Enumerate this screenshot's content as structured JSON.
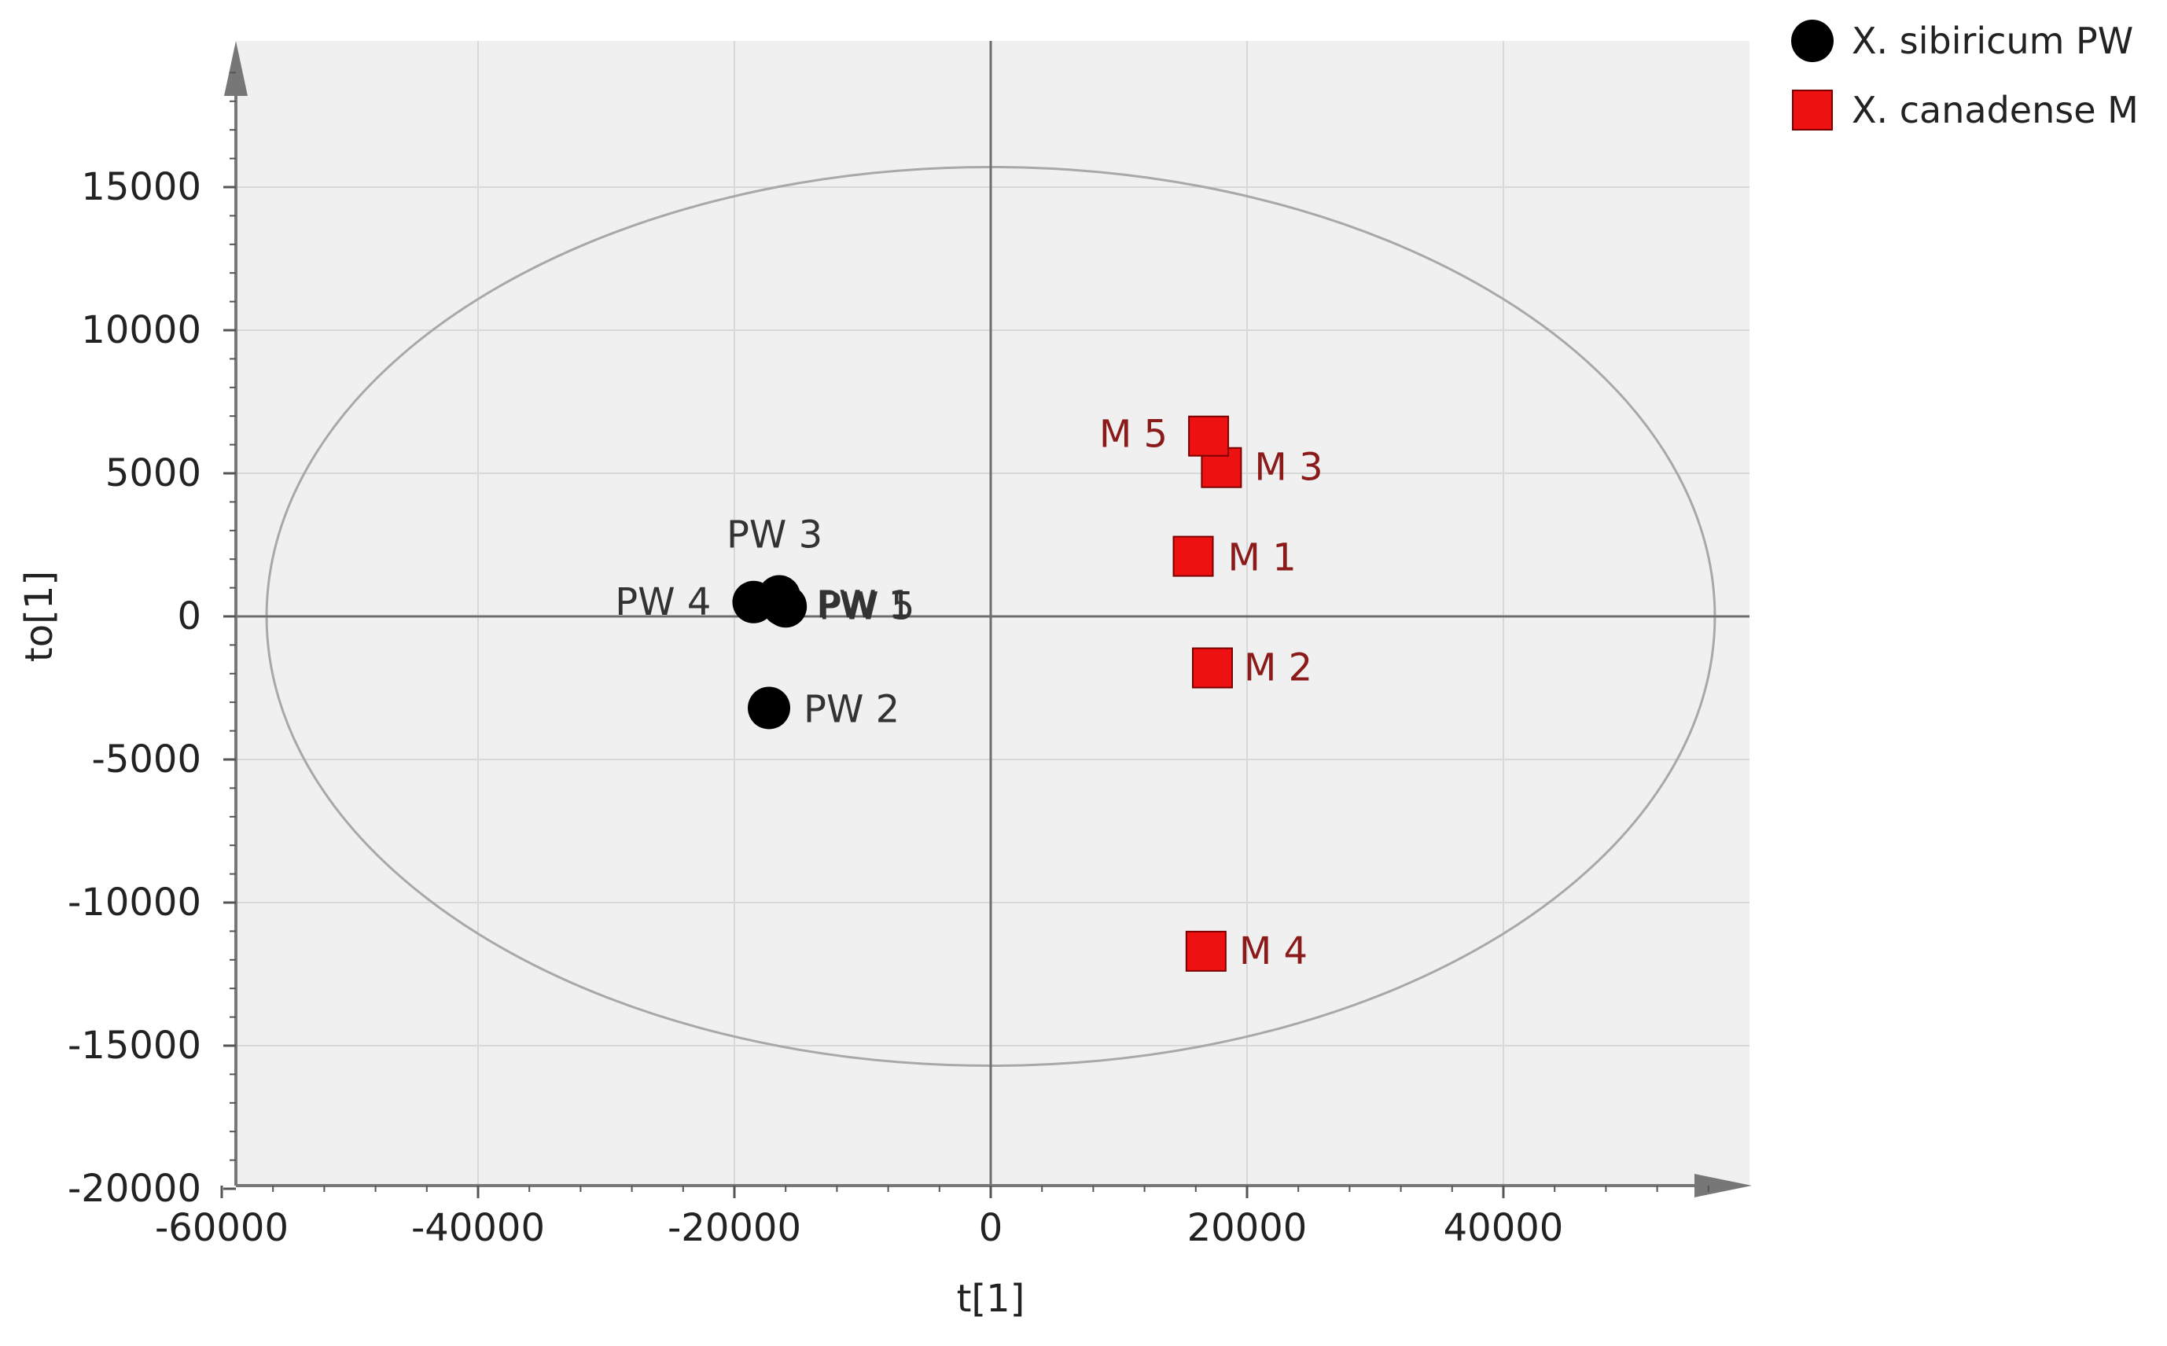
{
  "chart_data": {
    "type": "scatter",
    "title": "",
    "xlabel": "t[1]",
    "ylabel": "to[1]",
    "xlim": [
      -60000,
      60000
    ],
    "ylim": [
      -20000,
      20000
    ],
    "x_ticks": [
      -60000,
      -40000,
      -20000,
      0,
      20000,
      40000
    ],
    "y_ticks": [
      -20000,
      -15000,
      -10000,
      -5000,
      0,
      5000,
      10000,
      15000
    ],
    "grid": true,
    "legend_position": "top-right, outside plot",
    "ellipse": {
      "a": 56500,
      "b": 15700
    },
    "series": [
      {
        "name": "X. sibiricum PW",
        "marker": "circle",
        "color": "#000000",
        "label_color": "#333333",
        "points": [
          {
            "label": "PW 1",
            "x": -16200,
            "y": 400
          },
          {
            "label": "PW 2",
            "x": -17300,
            "y": -3200
          },
          {
            "label": "PW 3",
            "x": -16500,
            "y": 700
          },
          {
            "label": "PW 4",
            "x": -18500,
            "y": 500
          },
          {
            "label": "PW 5",
            "x": -16000,
            "y": 350
          }
        ]
      },
      {
        "name": "X. canadense M",
        "marker": "square",
        "color": "#ee1111",
        "label_color": "#8b1a1a",
        "points": [
          {
            "label": "M 1",
            "x": 15800,
            "y": 2100
          },
          {
            "label": "M 2",
            "x": 17300,
            "y": -1800
          },
          {
            "label": "M 3",
            "x": 18000,
            "y": 5200
          },
          {
            "label": "M 4",
            "x": 16800,
            "y": -11700
          },
          {
            "label": "M 5",
            "x": 17000,
            "y": 6300
          }
        ]
      }
    ]
  }
}
